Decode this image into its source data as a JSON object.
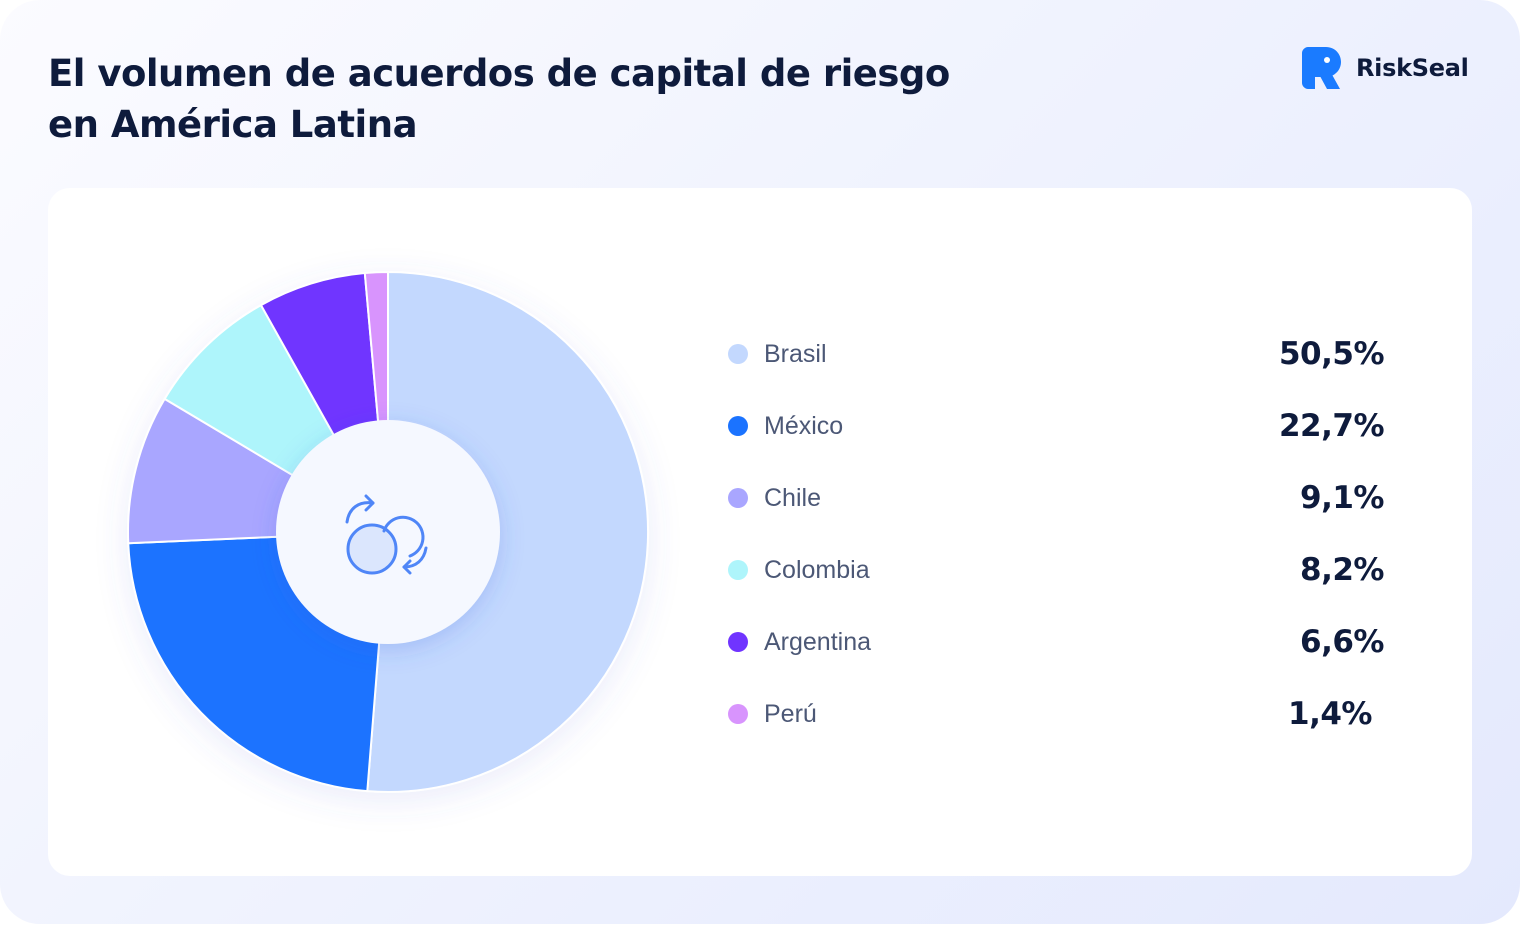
{
  "header": {
    "title_line1": "El volumen de acuerdos de capital de riesgo",
    "title_line2": "en América Latina"
  },
  "brand": {
    "name": "RiskSeal",
    "logo_icon": "riskseal-logo-icon",
    "color": "#1a7bff"
  },
  "center_icon": "exchange-circles-icon",
  "chart_data": {
    "type": "pie",
    "variant": "donut",
    "categories": [
      "Brasil",
      "México",
      "Chile",
      "Colombia",
      "Argentina",
      "Perú"
    ],
    "values": [
      50.5,
      22.7,
      9.1,
      8.2,
      6.6,
      1.4
    ],
    "value_labels": [
      "50,5%",
      "22,7%",
      "9,1%",
      "8,2%",
      "6,6%",
      "1,4%"
    ],
    "colors": [
      "#c3d8fe",
      "#1b73ff",
      "#a9a6ff",
      "#aef5fb",
      "#7034ff",
      "#d894fd"
    ],
    "unit": "%",
    "title": "El volumen de acuerdos de capital de riesgo en América Latina",
    "legend_placement": "right"
  }
}
